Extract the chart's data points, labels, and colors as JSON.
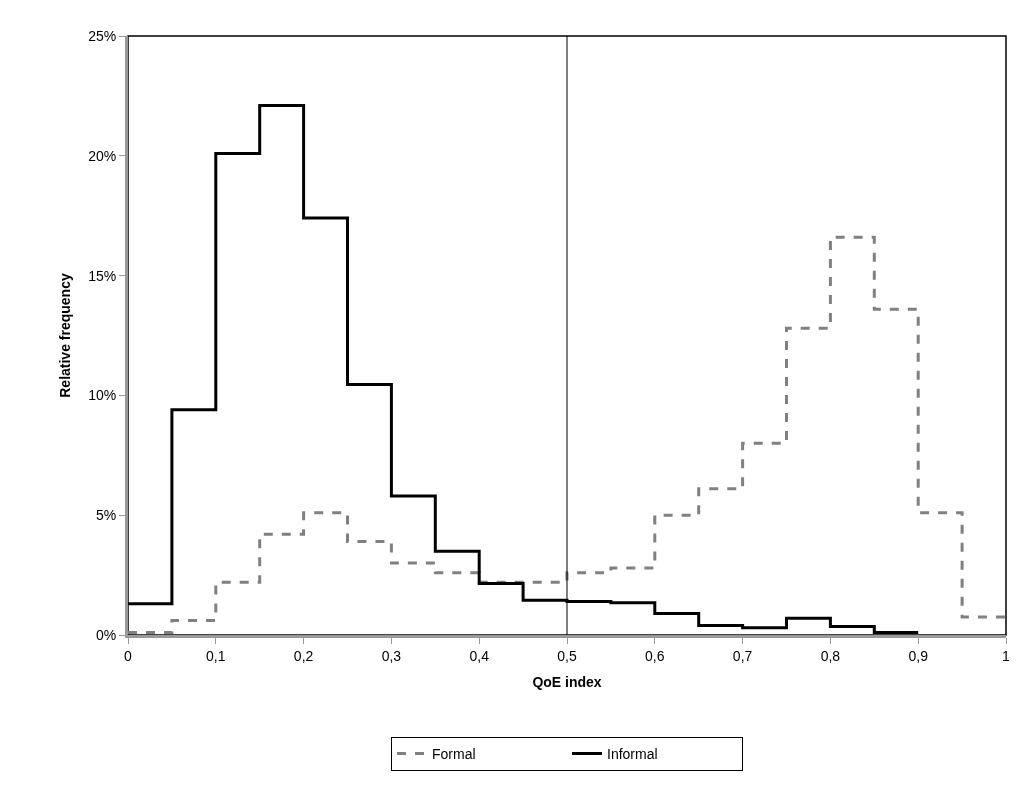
{
  "chart_data": {
    "type": "step",
    "xlabel": "QoE index",
    "ylabel": "Relative frequency",
    "series": [
      {
        "name": "Formal",
        "color": "#808080",
        "line_style": "dashed",
        "x": [
          0,
          0.05,
          0.1,
          0.15,
          0.2,
          0.25,
          0.3,
          0.35,
          0.4,
          0.45,
          0.5,
          0.55,
          0.6,
          0.65,
          0.7,
          0.75,
          0.8,
          0.85,
          0.9,
          0.95,
          1
        ],
        "values": [
          0.1,
          0.6,
          2.2,
          4.2,
          5.1,
          3.9,
          3.0,
          2.6,
          2.2,
          2.2,
          2.6,
          2.8,
          5.0,
          6.1,
          8.0,
          12.8,
          16.6,
          13.6,
          5.1,
          0.75,
          0.75
        ]
      },
      {
        "name": "Informal",
        "color": "#000000",
        "line_style": "solid",
        "x": [
          0,
          0.05,
          0.1,
          0.15,
          0.2,
          0.25,
          0.3,
          0.35,
          0.4,
          0.45,
          0.5,
          0.55,
          0.6,
          0.65,
          0.7,
          0.75,
          0.8,
          0.85,
          0.9
        ],
        "values": [
          1.3,
          9.4,
          20.1,
          22.1,
          17.4,
          10.45,
          5.8,
          3.5,
          2.15,
          1.45,
          1.4,
          1.35,
          0.9,
          0.4,
          0.3,
          0.7,
          0.35,
          0.1,
          0.1
        ]
      }
    ],
    "xlim": [
      0,
      1
    ],
    "xticks": [
      0,
      {
        "value": 0.1,
        "label": "0,1"
      },
      {
        "value": 0.2,
        "label": "0,2"
      },
      {
        "value": 0.3,
        "label": "0,3"
      },
      {
        "value": 0.4,
        "label": "0,4"
      },
      {
        "value": 0.5,
        "label": "0,5"
      },
      {
        "value": 0.6,
        "label": "0,6"
      },
      {
        "value": 0.7,
        "label": "0,7"
      },
      {
        "value": 0.8,
        "label": "0,8"
      },
      {
        "value": 0.9,
        "label": "0,9"
      },
      1
    ],
    "ylim": [
      0,
      25
    ],
    "yticks": [
      {
        "value": 0,
        "label": "0%"
      },
      {
        "value": 5,
        "label": "5%"
      },
      {
        "value": 10,
        "label": "10%"
      },
      {
        "value": 15,
        "label": "15%"
      },
      {
        "value": 20,
        "label": "20%"
      },
      {
        "value": 25,
        "label": "25%"
      }
    ],
    "ref_lines": [
      {
        "axis": "x",
        "value": 0.5,
        "color": "#000000",
        "line_style": "solid"
      }
    ],
    "legend": "bottom"
  }
}
